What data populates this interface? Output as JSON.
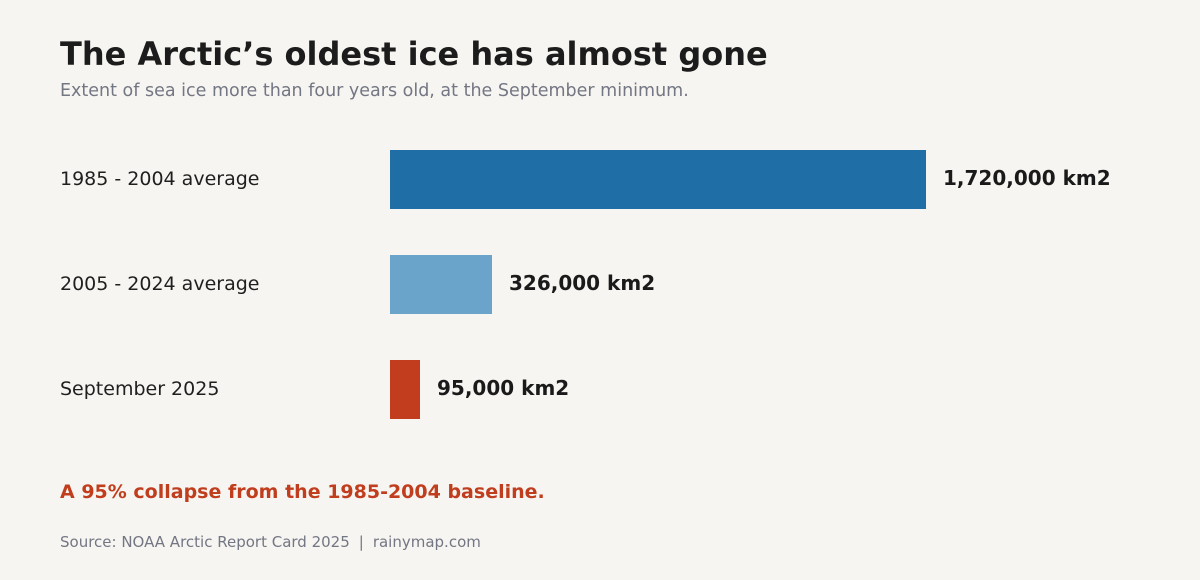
{
  "colors": {
    "background": "#f7f5f1",
    "title": "#1c1c1c",
    "muted": "#737683",
    "annotation": "#c03d1d"
  },
  "chart_data": {
    "type": "bar",
    "orientation": "horizontal",
    "title": "The Arctic’s oldest ice has almost gone",
    "subtitle": "Extent of sea ice more than four years old, at the September minimum.",
    "categories": [
      "1985 - 2004 average",
      "2005 - 2024 average",
      "September 2025"
    ],
    "values": [
      1720000,
      326000,
      95000
    ],
    "value_labels": [
      "1,720,000 km2",
      "326,000 km2",
      "95,000 km2"
    ],
    "bar_colors": [
      "#1f6fa6",
      "#6aa4cb",
      "#c23d1e"
    ],
    "grid": false,
    "legend": "none",
    "annotation": "A 95% collapse from the 1985-2004 baseline.",
    "source": "Source: NOAA Arctic Report Card 2025",
    "separator": "|",
    "credit": "rainymap.com"
  }
}
